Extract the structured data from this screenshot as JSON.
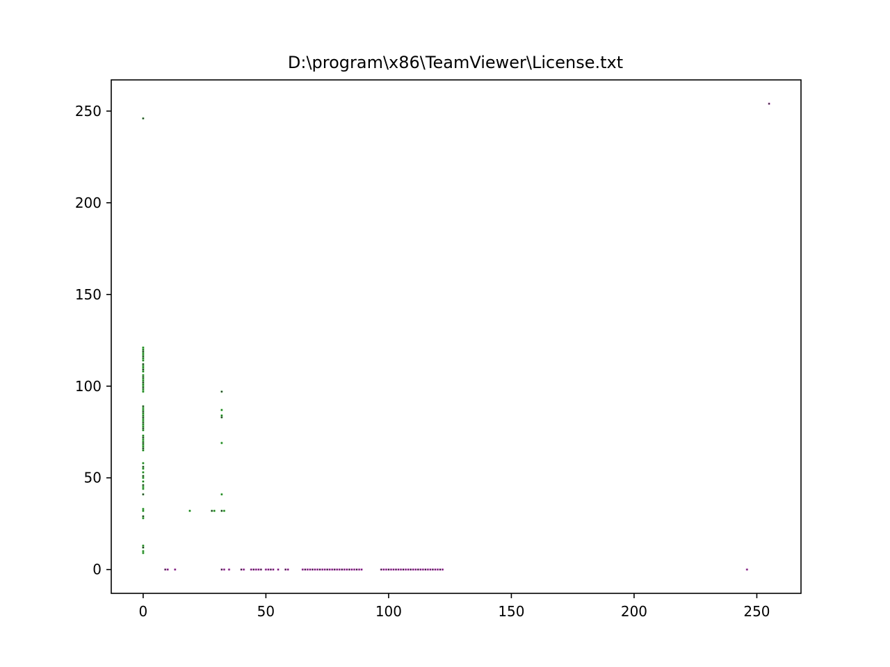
{
  "chart_data": {
    "type": "scatter",
    "title": "D:\\program\\x86\\TeamViewer\\License.txt",
    "xlabel": "",
    "ylabel": "",
    "xlim": [
      -13,
      268
    ],
    "ylim": [
      -13,
      267
    ],
    "xticks": [
      0,
      50,
      100,
      150,
      200,
      250
    ],
    "yticks": [
      0,
      50,
      100,
      150,
      200,
      250
    ],
    "grid": false,
    "legend": "none",
    "colors": {
      "green": "#0a6b0a",
      "green_light": "#7fd17f",
      "purple": "#5a0a5a",
      "purple_light": "#d88cd8",
      "dark": "#1a1a1a"
    },
    "series": [
      {
        "color": "green",
        "points": [
          [
            0,
            246
          ],
          [
            0,
            121
          ],
          [
            0,
            120
          ],
          [
            0,
            119
          ],
          [
            0,
            118
          ],
          [
            0,
            117
          ],
          [
            0,
            116
          ],
          [
            0,
            115
          ],
          [
            0,
            114
          ],
          [
            0,
            112
          ],
          [
            0,
            111
          ],
          [
            0,
            110
          ],
          [
            0,
            109
          ],
          [
            0,
            108
          ],
          [
            0,
            106
          ],
          [
            0,
            105
          ],
          [
            0,
            104
          ],
          [
            0,
            103
          ],
          [
            0,
            102
          ],
          [
            0,
            101
          ],
          [
            0,
            100
          ],
          [
            0,
            99
          ],
          [
            0,
            98
          ],
          [
            0,
            97
          ],
          [
            0,
            89
          ],
          [
            0,
            88
          ],
          [
            0,
            87
          ],
          [
            0,
            86
          ],
          [
            0,
            85
          ],
          [
            0,
            84
          ],
          [
            0,
            83
          ],
          [
            0,
            82
          ],
          [
            0,
            81
          ],
          [
            0,
            80
          ],
          [
            0,
            79
          ],
          [
            0,
            78
          ],
          [
            0,
            77
          ],
          [
            0,
            76
          ],
          [
            0,
            73
          ],
          [
            0,
            72
          ],
          [
            0,
            71
          ],
          [
            0,
            70
          ],
          [
            0,
            69
          ],
          [
            0,
            68
          ],
          [
            0,
            67
          ],
          [
            0,
            66
          ],
          [
            0,
            65
          ],
          [
            0,
            58
          ],
          [
            0,
            56
          ],
          [
            0,
            55
          ],
          [
            0,
            53
          ],
          [
            0,
            51
          ],
          [
            0,
            50
          ],
          [
            0,
            48
          ],
          [
            0,
            46
          ],
          [
            0,
            45
          ],
          [
            0,
            44
          ],
          [
            0,
            41
          ],
          [
            0,
            33
          ],
          [
            0,
            32
          ],
          [
            0,
            29
          ],
          [
            0,
            28
          ],
          [
            0,
            13
          ],
          [
            0,
            12
          ],
          [
            0,
            10
          ],
          [
            0,
            9
          ],
          [
            32,
            97
          ],
          [
            32,
            87
          ],
          [
            32,
            84
          ],
          [
            32,
            83
          ],
          [
            32,
            69
          ],
          [
            32,
            41
          ],
          [
            32,
            32
          ],
          [
            33,
            32
          ],
          [
            19,
            32
          ],
          [
            28,
            32
          ],
          [
            29,
            32
          ]
        ]
      },
      {
        "color": "purple",
        "points": [
          [
            9,
            0
          ],
          [
            10,
            0
          ],
          [
            13,
            0
          ],
          [
            32,
            0
          ],
          [
            33,
            0
          ],
          [
            35,
            0
          ],
          [
            40,
            0
          ],
          [
            41,
            0
          ],
          [
            44,
            0
          ],
          [
            45,
            0
          ],
          [
            46,
            0
          ],
          [
            47,
            0
          ],
          [
            48,
            0
          ],
          [
            50,
            0
          ],
          [
            51,
            0
          ],
          [
            52,
            0
          ],
          [
            53,
            0
          ],
          [
            55,
            0
          ],
          [
            58,
            0
          ],
          [
            59,
            0
          ],
          [
            65,
            0
          ],
          [
            66,
            0
          ],
          [
            67,
            0
          ],
          [
            68,
            0
          ],
          [
            69,
            0
          ],
          [
            70,
            0
          ],
          [
            71,
            0
          ],
          [
            72,
            0
          ],
          [
            73,
            0
          ],
          [
            74,
            0
          ],
          [
            75,
            0
          ],
          [
            76,
            0
          ],
          [
            77,
            0
          ],
          [
            78,
            0
          ],
          [
            79,
            0
          ],
          [
            80,
            0
          ],
          [
            81,
            0
          ],
          [
            82,
            0
          ],
          [
            83,
            0
          ],
          [
            84,
            0
          ],
          [
            85,
            0
          ],
          [
            86,
            0
          ],
          [
            87,
            0
          ],
          [
            88,
            0
          ],
          [
            89,
            0
          ],
          [
            97,
            0
          ],
          [
            98,
            0
          ],
          [
            99,
            0
          ],
          [
            100,
            0
          ],
          [
            101,
            0
          ],
          [
            102,
            0
          ],
          [
            103,
            0
          ],
          [
            104,
            0
          ],
          [
            105,
            0
          ],
          [
            106,
            0
          ],
          [
            107,
            0
          ],
          [
            108,
            0
          ],
          [
            109,
            0
          ],
          [
            110,
            0
          ],
          [
            111,
            0
          ],
          [
            112,
            0
          ],
          [
            113,
            0
          ],
          [
            114,
            0
          ],
          [
            115,
            0
          ],
          [
            116,
            0
          ],
          [
            117,
            0
          ],
          [
            118,
            0
          ],
          [
            119,
            0
          ],
          [
            120,
            0
          ],
          [
            121,
            0
          ],
          [
            122,
            0
          ],
          [
            246,
            0
          ],
          [
            255,
            254
          ]
        ]
      }
    ]
  }
}
